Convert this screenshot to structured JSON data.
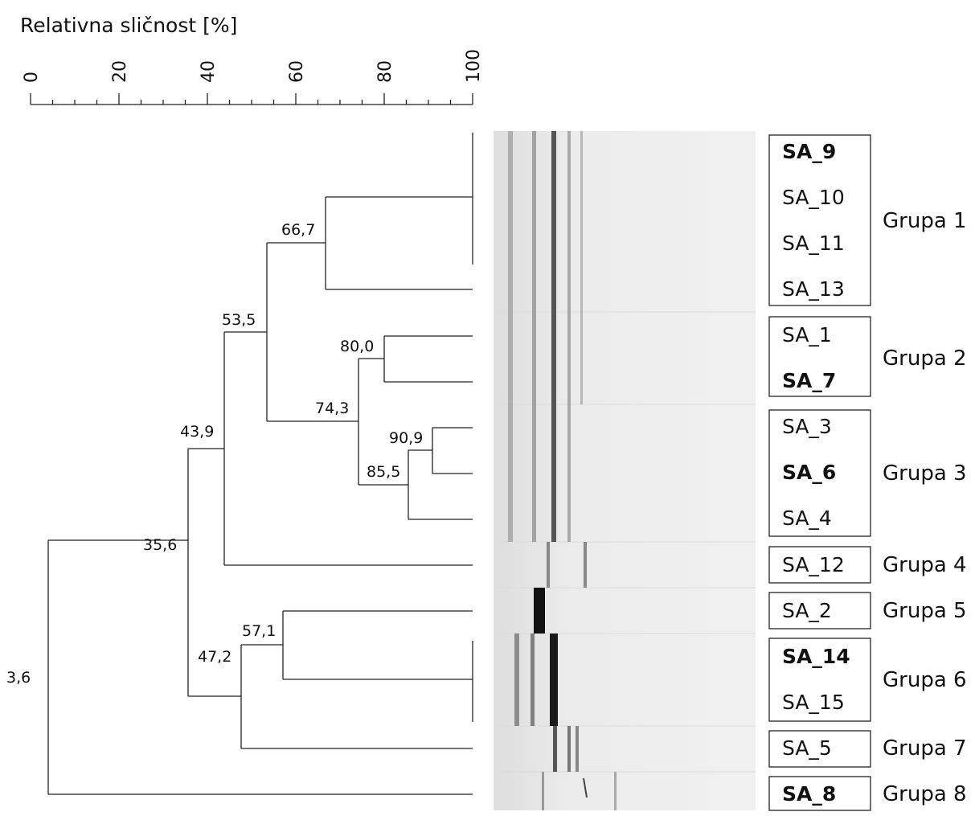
{
  "axis": {
    "title": "Relativna sličnost [%]",
    "ticks": [
      "0",
      "20",
      "40",
      "60",
      "80",
      "100"
    ]
  },
  "node_labels": [
    "66,7",
    "53,5",
    "80,0",
    "74,3",
    "43,9",
    "90,9",
    "85,5",
    "35,6",
    "57,1",
    "47,2",
    "3,6"
  ],
  "samples": [
    {
      "label": "SA_9",
      "bold": true
    },
    {
      "label": "SA_10",
      "bold": false
    },
    {
      "label": "SA_11",
      "bold": false
    },
    {
      "label": "SA_13",
      "bold": false
    },
    {
      "label": "SA_1",
      "bold": false
    },
    {
      "label": "SA_7",
      "bold": true
    },
    {
      "label": "SA_3",
      "bold": false
    },
    {
      "label": "SA_6",
      "bold": true
    },
    {
      "label": "SA_4",
      "bold": false
    },
    {
      "label": "SA_12",
      "bold": false
    },
    {
      "label": "SA_2",
      "bold": false
    },
    {
      "label": "SA_14",
      "bold": true
    },
    {
      "label": "SA_15",
      "bold": false
    },
    {
      "label": "SA_5",
      "bold": false
    },
    {
      "label": "SA_8",
      "bold": true
    }
  ],
  "groups": [
    "Grupa 1",
    "Grupa 2",
    "Grupa 3",
    "Grupa 4",
    "Grupa 5",
    "Grupa 6",
    "Grupa 7",
    "Grupa 8"
  ]
}
